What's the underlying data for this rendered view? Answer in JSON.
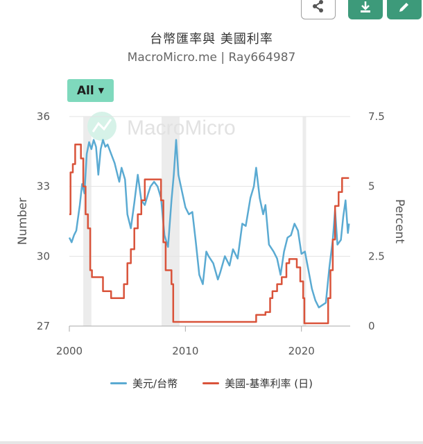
{
  "toolbar": {
    "share_icon": "share-icon",
    "download_icon": "download-icon",
    "edit_icon": "pencil-icon",
    "accent_color": "#3d9a7a"
  },
  "header": {
    "title": "台幣匯率與 美國利率",
    "subtitle": "MacroMicro.me | Ray664987"
  },
  "range_selector": {
    "label": "All",
    "caret": "▼",
    "color": "#7fd9bd"
  },
  "watermark": {
    "text": "MacroMicro"
  },
  "legend": {
    "items": [
      {
        "label": "美元/台幣",
        "color": "#5aaad2"
      },
      {
        "label": "美國-基準利率 (日)",
        "color": "#d9533a"
      }
    ]
  },
  "chart_data": {
    "type": "line",
    "title": "台幣匯率與 美國利率",
    "subtitle": "MacroMicro.me | Ray664987",
    "xlabel": "",
    "x_ticks": [
      "2000",
      "2010",
      "2020"
    ],
    "xlim": [
      2000,
      2024.2
    ],
    "y_left": {
      "label": "Number",
      "ticks": [
        "27",
        "30",
        "33",
        "36"
      ],
      "range": [
        27,
        36
      ]
    },
    "y_right": {
      "label": "Percent",
      "ticks": [
        "0",
        "2.5",
        "5",
        "7.5"
      ],
      "range": [
        0,
        7.5
      ]
    },
    "grid": true,
    "legend_position": "bottom",
    "recession_bands": [
      [
        2001.2,
        2001.9
      ],
      [
        2007.95,
        2009.5
      ],
      [
        2020.1,
        2020.4
      ]
    ],
    "series": [
      {
        "name": "美元/台幣",
        "axis": "left",
        "color": "#5aaad2",
        "points": [
          [
            2000.0,
            30.8
          ],
          [
            2000.2,
            30.6
          ],
          [
            2000.4,
            30.9
          ],
          [
            2000.6,
            31.1
          ],
          [
            2000.9,
            32.2
          ],
          [
            2001.1,
            33.1
          ],
          [
            2001.3,
            32.7
          ],
          [
            2001.5,
            34.4
          ],
          [
            2001.7,
            34.9
          ],
          [
            2001.9,
            34.6
          ],
          [
            2002.1,
            35.0
          ],
          [
            2002.3,
            34.7
          ],
          [
            2002.5,
            33.5
          ],
          [
            2002.7,
            34.6
          ],
          [
            2002.9,
            35.0
          ],
          [
            2003.1,
            34.7
          ],
          [
            2003.3,
            34.8
          ],
          [
            2003.6,
            34.4
          ],
          [
            2003.9,
            34.0
          ],
          [
            2004.1,
            33.6
          ],
          [
            2004.3,
            33.2
          ],
          [
            2004.5,
            33.8
          ],
          [
            2004.8,
            33.3
          ],
          [
            2005.0,
            31.8
          ],
          [
            2005.3,
            31.2
          ],
          [
            2005.6,
            32.3
          ],
          [
            2005.9,
            33.5
          ],
          [
            2006.2,
            32.4
          ],
          [
            2006.5,
            32.2
          ],
          [
            2006.8,
            32.7
          ],
          [
            2007.0,
            33.0
          ],
          [
            2007.3,
            33.2
          ],
          [
            2007.6,
            33.0
          ],
          [
            2007.9,
            32.5
          ],
          [
            2008.2,
            30.9
          ],
          [
            2008.5,
            30.4
          ],
          [
            2008.8,
            32.4
          ],
          [
            2009.0,
            33.5
          ],
          [
            2009.2,
            35.0
          ],
          [
            2009.4,
            33.5
          ],
          [
            2009.7,
            32.8
          ],
          [
            2010.0,
            32.1
          ],
          [
            2010.3,
            31.8
          ],
          [
            2010.6,
            31.9
          ],
          [
            2010.9,
            30.6
          ],
          [
            2011.2,
            29.2
          ],
          [
            2011.5,
            28.8
          ],
          [
            2011.8,
            30.2
          ],
          [
            2012.0,
            30.0
          ],
          [
            2012.4,
            29.7
          ],
          [
            2012.8,
            29.0
          ],
          [
            2013.0,
            29.3
          ],
          [
            2013.4,
            30.0
          ],
          [
            2013.8,
            29.6
          ],
          [
            2014.1,
            30.3
          ],
          [
            2014.5,
            29.9
          ],
          [
            2014.9,
            31.4
          ],
          [
            2015.2,
            31.3
          ],
          [
            2015.6,
            32.5
          ],
          [
            2015.9,
            33.0
          ],
          [
            2016.1,
            33.8
          ],
          [
            2016.4,
            32.5
          ],
          [
            2016.7,
            31.8
          ],
          [
            2016.9,
            32.2
          ],
          [
            2017.2,
            30.5
          ],
          [
            2017.6,
            30.2
          ],
          [
            2017.9,
            29.9
          ],
          [
            2018.2,
            29.2
          ],
          [
            2018.5,
            30.2
          ],
          [
            2018.8,
            30.8
          ],
          [
            2019.1,
            30.9
          ],
          [
            2019.4,
            31.4
          ],
          [
            2019.7,
            31.1
          ],
          [
            2020.0,
            30.1
          ],
          [
            2020.3,
            30.2
          ],
          [
            2020.6,
            29.4
          ],
          [
            2020.9,
            28.6
          ],
          [
            2021.2,
            28.1
          ],
          [
            2021.5,
            27.8
          ],
          [
            2021.8,
            27.9
          ],
          [
            2022.1,
            28.0
          ],
          [
            2022.4,
            29.5
          ],
          [
            2022.7,
            30.7
          ],
          [
            2022.9,
            32.0
          ],
          [
            2023.1,
            30.5
          ],
          [
            2023.4,
            30.7
          ],
          [
            2023.6,
            31.7
          ],
          [
            2023.8,
            32.4
          ],
          [
            2024.0,
            31.0
          ],
          [
            2024.1,
            31.4
          ]
        ]
      },
      {
        "name": "美國-基準利率 (日)",
        "axis": "right",
        "color": "#d9533a",
        "points": [
          [
            2000.0,
            4.0
          ],
          [
            2000.1,
            5.5
          ],
          [
            2000.3,
            5.8
          ],
          [
            2000.5,
            6.5
          ],
          [
            2000.8,
            6.5
          ],
          [
            2001.0,
            6.0
          ],
          [
            2001.2,
            5.0
          ],
          [
            2001.4,
            4.0
          ],
          [
            2001.6,
            3.5
          ],
          [
            2001.8,
            2.0
          ],
          [
            2001.95,
            1.75
          ],
          [
            2002.5,
            1.75
          ],
          [
            2002.9,
            1.25
          ],
          [
            2003.4,
            1.25
          ],
          [
            2003.6,
            1.0
          ],
          [
            2004.4,
            1.0
          ],
          [
            2004.7,
            1.5
          ],
          [
            2005.0,
            2.25
          ],
          [
            2005.3,
            2.75
          ],
          [
            2005.6,
            3.5
          ],
          [
            2005.9,
            4.0
          ],
          [
            2006.2,
            4.5
          ],
          [
            2006.5,
            5.25
          ],
          [
            2007.6,
            5.25
          ],
          [
            2007.9,
            4.5
          ],
          [
            2008.1,
            3.0
          ],
          [
            2008.3,
            2.0
          ],
          [
            2008.8,
            1.5
          ],
          [
            2008.95,
            0.15
          ],
          [
            2015.9,
            0.15
          ],
          [
            2016.1,
            0.4
          ],
          [
            2016.9,
            0.5
          ],
          [
            2017.3,
            1.0
          ],
          [
            2017.5,
            1.25
          ],
          [
            2017.9,
            1.5
          ],
          [
            2018.3,
            1.75
          ],
          [
            2018.7,
            2.25
          ],
          [
            2018.95,
            2.4
          ],
          [
            2019.5,
            2.4
          ],
          [
            2019.6,
            2.1
          ],
          [
            2019.9,
            1.6
          ],
          [
            2020.15,
            1.0
          ],
          [
            2020.25,
            0.1
          ],
          [
            2022.1,
            0.1
          ],
          [
            2022.3,
            1.0
          ],
          [
            2022.5,
            2.0
          ],
          [
            2022.7,
            3.1
          ],
          [
            2022.9,
            4.3
          ],
          [
            2023.2,
            4.8
          ],
          [
            2023.5,
            5.3
          ],
          [
            2024.1,
            5.3
          ]
        ]
      }
    ]
  }
}
